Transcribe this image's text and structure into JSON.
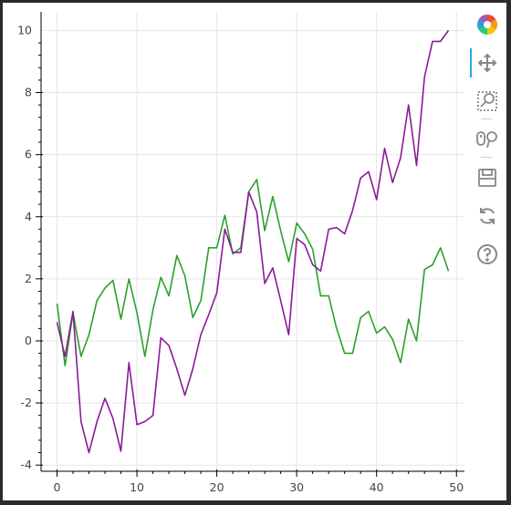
{
  "chart_data": {
    "type": "line",
    "title": "",
    "xlabel": "",
    "ylabel": "",
    "xlim": [
      -2,
      51
    ],
    "ylim": [
      -4.2,
      10.6
    ],
    "xticks": [
      0,
      10,
      20,
      30,
      40,
      50
    ],
    "yticks": [
      -4,
      -2,
      0,
      2,
      4,
      6,
      8,
      10
    ],
    "grid": true,
    "series": [
      {
        "color": "#2ca02c",
        "x": [
          0,
          1,
          2,
          3,
          4,
          5,
          6,
          7,
          8,
          9,
          10,
          11,
          12,
          13,
          14,
          15,
          16,
          17,
          18,
          19,
          20,
          21,
          22,
          23,
          24,
          25,
          26,
          27,
          28,
          29,
          30,
          31,
          32,
          33,
          34,
          35,
          36,
          37,
          38,
          39,
          40,
          41,
          42,
          43,
          44,
          45,
          46,
          47,
          48,
          49
        ],
        "y": [
          1.2,
          -0.8,
          0.9,
          -0.5,
          0.2,
          1.3,
          1.7,
          1.95,
          0.7,
          2.0,
          0.9,
          -0.5,
          1.0,
          2.05,
          1.45,
          2.75,
          2.1,
          0.75,
          1.3,
          3.0,
          3.0,
          4.05,
          2.8,
          3.0,
          4.8,
          5.2,
          3.55,
          4.65,
          3.55,
          2.55,
          3.8,
          3.45,
          2.95,
          1.45,
          1.45,
          0.4,
          -0.4,
          -0.4,
          0.75,
          0.95,
          0.25,
          0.45,
          0.05,
          -0.7,
          0.7,
          0.0,
          2.3,
          2.45,
          3.0,
          2.25
        ]
      },
      {
        "color": "#8b1a9a",
        "x": [
          0,
          1,
          2,
          3,
          4,
          5,
          6,
          7,
          8,
          9,
          10,
          11,
          12,
          13,
          14,
          15,
          16,
          17,
          18,
          19,
          20,
          21,
          22,
          23,
          24,
          25,
          26,
          27,
          28,
          29,
          30,
          31,
          32,
          33,
          34,
          35,
          36,
          37,
          38,
          39,
          40,
          41,
          42,
          43,
          44,
          45,
          46,
          47,
          48,
          49
        ],
        "y": [
          0.6,
          -0.5,
          0.95,
          -2.6,
          -3.6,
          -2.6,
          -1.85,
          -2.5,
          -3.55,
          -0.7,
          -2.7,
          -2.6,
          -2.4,
          0.1,
          -0.15,
          -0.9,
          -1.75,
          -0.9,
          0.2,
          0.85,
          1.55,
          3.6,
          2.85,
          2.85,
          4.8,
          4.15,
          1.85,
          2.35,
          1.3,
          0.2,
          3.3,
          3.1,
          2.45,
          2.25,
          3.6,
          3.65,
          3.45,
          4.2,
          5.25,
          5.45,
          4.55,
          6.2,
          5.1,
          5.9,
          7.6,
          5.65,
          8.5,
          9.65,
          9.65,
          10.0
        ]
      }
    ]
  },
  "toolbar": {
    "icons": [
      "bokeh-logo-icon",
      "pan-icon",
      "box-zoom-icon",
      "wheel-zoom-icon",
      "save-icon",
      "reset-icon",
      "help-icon"
    ],
    "accent_color": "#26aae1"
  }
}
